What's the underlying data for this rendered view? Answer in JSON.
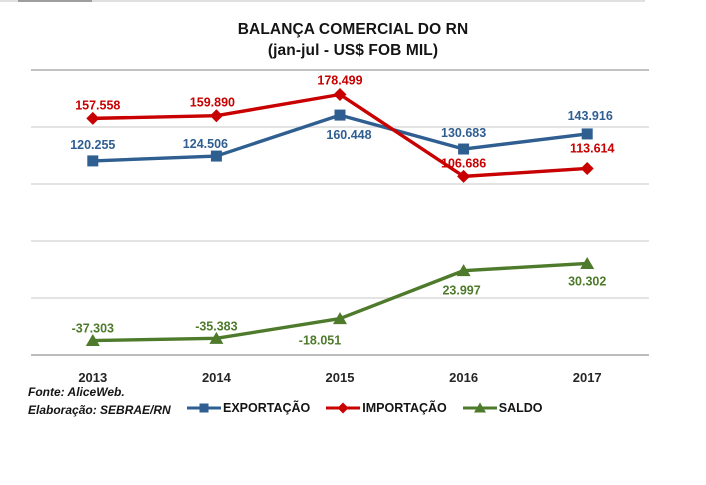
{
  "title": {
    "line1": "BALANÇA COMERCIAL DO RN",
    "line2": "(jan-jul - US$ FOB MIL)"
  },
  "footer": {
    "fonte": "Fonte: AliceWeb.",
    "elaboracao": "Elaboração: SEBRAE/RN"
  },
  "chart_data": {
    "type": "line",
    "title": "BALANÇA COMERCIAL DO RN (jan-jul - US$ FOB MIL)",
    "categories": [
      "2013",
      "2014",
      "2015",
      "2016",
      "2017"
    ],
    "series": [
      {
        "name": "EXPORTAÇÃO",
        "color": "#2F5E91",
        "marker": "square",
        "values": [
          120.255,
          124.506,
          160.448,
          130.683,
          143.916
        ],
        "labels": [
          "120.255",
          "124.506",
          "160.448",
          "130.683",
          "143.916"
        ]
      },
      {
        "name": "IMPORTAÇÃO",
        "color": "#C80000",
        "marker": "diamond",
        "values": [
          157.558,
          159.89,
          178.499,
          106.686,
          113.614
        ],
        "labels": [
          "157.558",
          "159.890",
          "178.499",
          "106.686",
          "113.614"
        ]
      },
      {
        "name": "SALDO",
        "color": "#4E7A2B",
        "marker": "triangle",
        "values": [
          -37.303,
          -35.383,
          -18.051,
          23.997,
          30.302
        ],
        "labels": [
          "-37.303",
          "-35.383",
          "-18.051",
          "23.997",
          "30.302"
        ]
      }
    ],
    "xlabel": "",
    "ylabel": "",
    "ylim": [
      -50,
      200
    ],
    "ytick_step": 50,
    "grid": true,
    "gridline_color": "#DADADA",
    "axis_color": "#BCBCBC",
    "legend_position": "bottom",
    "value_label_color_follows_series": true
  }
}
